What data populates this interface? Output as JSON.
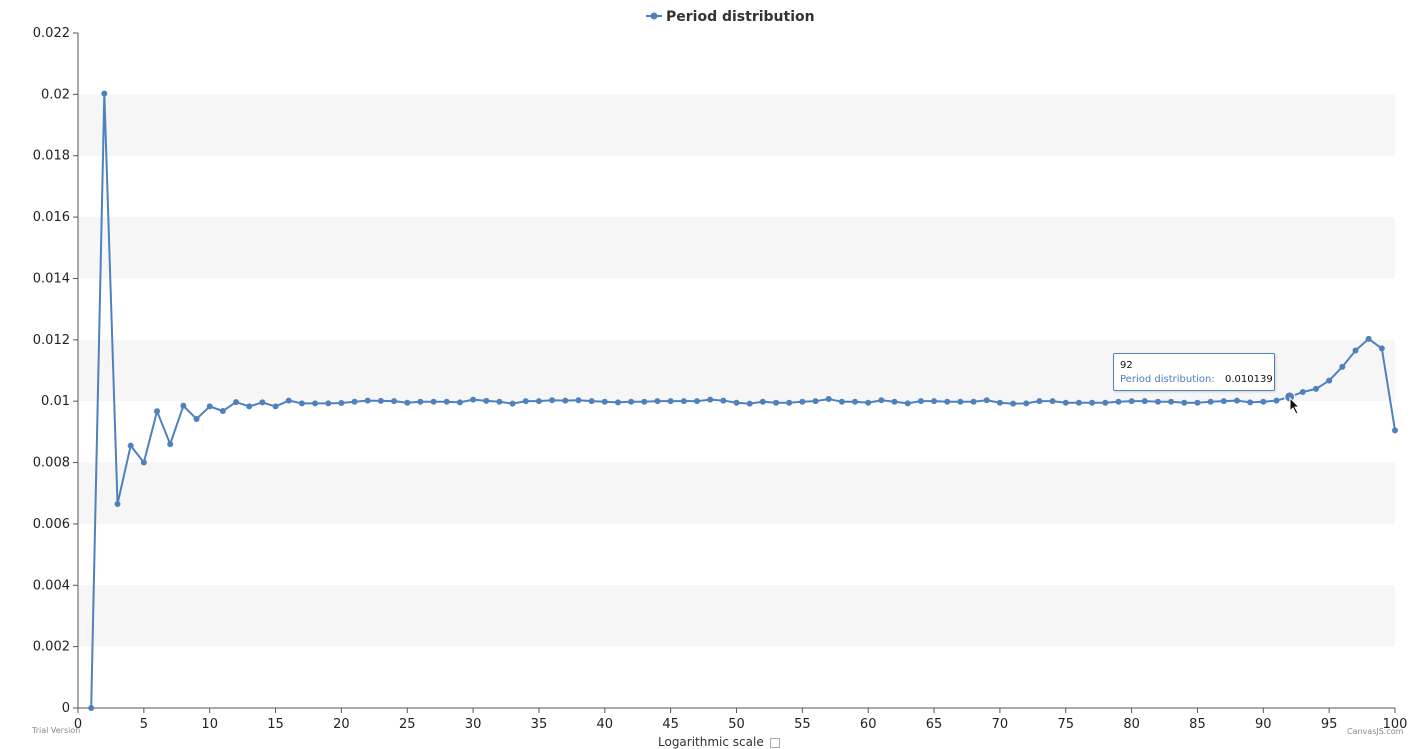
{
  "chart_data": {
    "type": "line",
    "title": "",
    "xlabel": "",
    "ylabel": "",
    "xlim": [
      0,
      100
    ],
    "ylim": [
      0,
      0.022
    ],
    "x_ticks": [
      0,
      5,
      10,
      15,
      20,
      25,
      30,
      35,
      40,
      45,
      50,
      55,
      60,
      65,
      70,
      75,
      80,
      85,
      90,
      95,
      100
    ],
    "y_ticks": [
      "0",
      "0.002",
      "0.004",
      "0.006",
      "0.008",
      "0.01",
      "0.012",
      "0.014",
      "0.016",
      "0.018",
      "0.02",
      "0.022"
    ],
    "grid": "alternating horizontal bands",
    "legend_position": "top-center",
    "series": [
      {
        "name": "Period distribution",
        "color": "#4f81bc",
        "x": [
          1,
          2,
          3,
          4,
          5,
          6,
          7,
          8,
          9,
          10,
          11,
          12,
          13,
          14,
          15,
          16,
          17,
          18,
          19,
          20,
          21,
          22,
          23,
          24,
          25,
          26,
          27,
          28,
          29,
          30,
          31,
          32,
          33,
          34,
          35,
          36,
          37,
          38,
          39,
          40,
          41,
          42,
          43,
          44,
          45,
          46,
          47,
          48,
          49,
          50,
          51,
          52,
          53,
          54,
          55,
          56,
          57,
          58,
          59,
          60,
          61,
          62,
          63,
          64,
          65,
          66,
          67,
          68,
          69,
          70,
          71,
          72,
          73,
          74,
          75,
          76,
          77,
          78,
          79,
          80,
          81,
          82,
          83,
          84,
          85,
          86,
          87,
          88,
          89,
          90,
          91,
          92,
          93,
          94,
          95,
          96,
          97,
          98,
          99,
          100
        ],
        "values": [
          0,
          0.02003,
          0.00665,
          0.00855,
          0.008,
          0.00967,
          0.0086,
          0.00985,
          0.00942,
          0.00983,
          0.00968,
          0.00997,
          0.00983,
          0.00996,
          0.00983,
          0.01002,
          0.00993,
          0.00993,
          0.00993,
          0.00994,
          0.00998,
          0.01002,
          0.01001,
          0.01,
          0.00995,
          0.00998,
          0.00998,
          0.00998,
          0.00996,
          0.01005,
          0.01001,
          0.00998,
          0.00992,
          0.01,
          0.01,
          0.01003,
          0.01002,
          0.01003,
          0.01,
          0.00998,
          0.00996,
          0.00998,
          0.00998,
          0.01,
          0.01,
          0.01,
          0.01,
          0.01005,
          0.01002,
          0.00995,
          0.00992,
          0.00998,
          0.00995,
          0.00995,
          0.00998,
          0.01,
          0.01007,
          0.00998,
          0.00998,
          0.00995,
          0.01003,
          0.00998,
          0.00993,
          0.01,
          0.01,
          0.00998,
          0.00998,
          0.00998,
          0.01003,
          0.00995,
          0.00992,
          0.00993,
          0.01,
          0.01,
          0.00995,
          0.00995,
          0.00995,
          0.00995,
          0.00998,
          0.01,
          0.01,
          0.00998,
          0.00998,
          0.00995,
          0.00995,
          0.00998,
          0.01,
          0.01002,
          0.00996,
          0.00998,
          0.01002,
          0.010139,
          0.0103,
          0.0104,
          0.01067,
          0.01112,
          0.01165,
          0.01203,
          0.01172,
          0.00905
        ]
      }
    ],
    "tooltip": {
      "x_label": "92",
      "series_label": "Period distribution:",
      "value_label": "0.010139",
      "x": 92,
      "y": 0.010139
    }
  },
  "footer": {
    "trial_text": "Trial Version",
    "credit_text": "CanvasJS.com",
    "log_scale_label": "Logarithmic scale"
  }
}
